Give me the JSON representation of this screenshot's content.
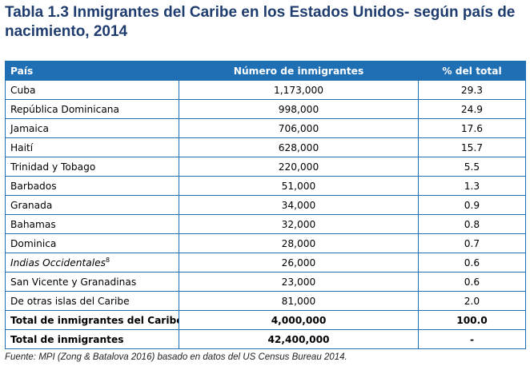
{
  "title": "Tabla 1.3 Inmigrantes del Caribe en los Estados Unidos- según país de nacimiento, 2014",
  "table": {
    "headers": [
      "País",
      "Número de inmigrantes",
      "% del total"
    ],
    "rows": [
      {
        "country": "Cuba",
        "immigrants": "1,173,000",
        "percent": "29.3"
      },
      {
        "country": "República Dominicana",
        "immigrants": "998,000",
        "percent": "24.9"
      },
      {
        "country": "Jamaica",
        "immigrants": "706,000",
        "percent": "17.6"
      },
      {
        "country": "Haití",
        "immigrants": "628,000",
        "percent": "15.7"
      },
      {
        "country": "Trinidad y Tobago",
        "immigrants": "220,000",
        "percent": "5.5"
      },
      {
        "country": "Barbados",
        "immigrants": "51,000",
        "percent": "1.3"
      },
      {
        "country": "Granada",
        "immigrants": "34,000",
        "percent": "0.9"
      },
      {
        "country": "Bahamas",
        "immigrants": "32,000",
        "percent": "0.8"
      },
      {
        "country": "Dominica",
        "immigrants": "28,000",
        "percent": "0.7"
      },
      {
        "country": "Indias Occidentales",
        "footnote": "8",
        "immigrants": "26,000",
        "percent": "0.6"
      },
      {
        "country": "San Vicente y Granadinas",
        "immigrants": "23,000",
        "percent": "0.6"
      },
      {
        "country": "De otras islas del Caribe",
        "immigrants": "81,000",
        "percent": "2.0"
      }
    ],
    "totals": [
      {
        "country": "Total de inmigrantes del Caribe",
        "immigrants": "4,000,000",
        "percent": "100.0"
      },
      {
        "country": "Total de inmigrantes",
        "immigrants": "42,400,000",
        "percent": "-"
      }
    ]
  },
  "source": "Fuente: MPI (Zong & Batalova 2016) basado en datos del US Census Bureau 2014."
}
